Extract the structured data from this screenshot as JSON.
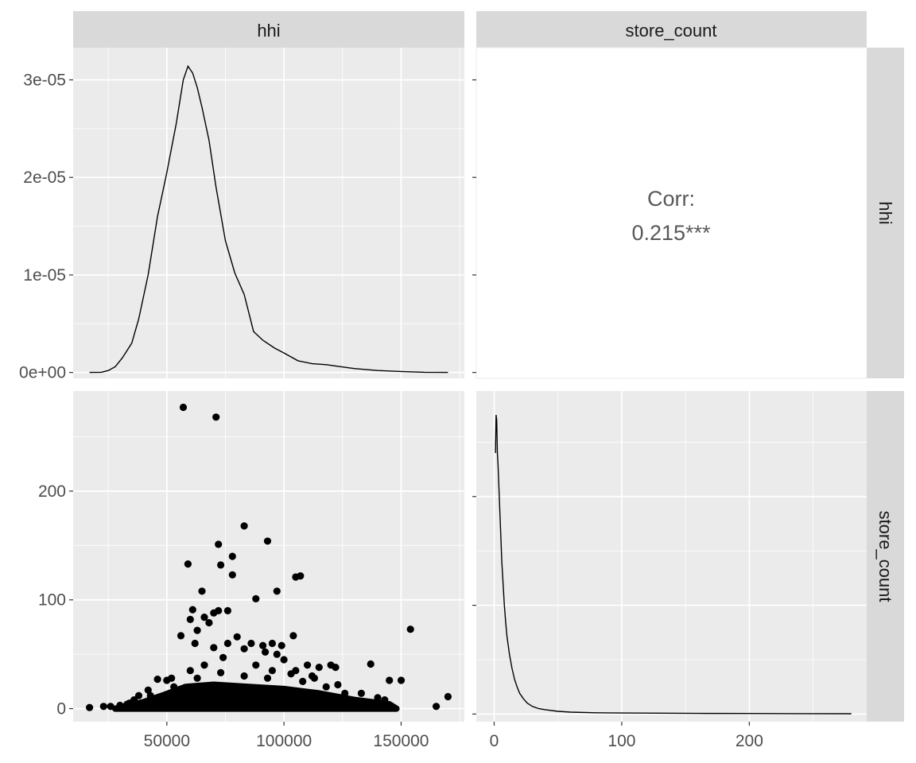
{
  "chart_data": {
    "type": "scatter-matrix",
    "variables": [
      "hhi",
      "store_count"
    ],
    "strip_labels": {
      "columns": [
        "hhi",
        "store_count"
      ],
      "rows": [
        "hhi",
        "store_count"
      ]
    },
    "panels": {
      "hhi_density": {
        "type": "line",
        "xlim": [
          10000,
          177000
        ],
        "ylim": [
          -6e-07,
          3.33e-05
        ],
        "x_ticks": [
          50000,
          100000,
          150000
        ],
        "y_ticks": [
          0,
          1e-05,
          2e-05,
          3e-05
        ],
        "y_tick_labels": [
          "0e+00",
          "1e-05",
          "2e-05",
          "3e-05"
        ],
        "x": [
          17000,
          22000,
          25000,
          28000,
          31000,
          35000,
          38000,
          42000,
          46000,
          50000,
          54000,
          57000,
          59000,
          61000,
          63000,
          65000,
          68000,
          71000,
          75000,
          79000,
          83000,
          87000,
          91000,
          96000,
          100000,
          106000,
          112000,
          118000,
          124000,
          130000,
          140000,
          150000,
          160000,
          170000
        ],
        "y": [
          0,
          2e-08,
          2e-07,
          6e-07,
          1.5e-06,
          3e-06,
          5.5e-06,
          1e-05,
          1.6e-05,
          2.05e-05,
          2.55e-05,
          3e-05,
          3.14e-05,
          3.07e-05,
          2.92e-05,
          2.72e-05,
          2.38e-05,
          1.9e-05,
          1.35e-05,
          1.02e-05,
          8e-06,
          4.2e-06,
          3.3e-06,
          2.5e-06,
          2e-06,
          1.2e-06,
          9e-07,
          8e-07,
          6e-07,
          4e-07,
          2e-07,
          1e-07,
          2e-08,
          0
        ]
      },
      "correlation": {
        "label": "Corr:",
        "value": "0.215***"
      },
      "scatter": {
        "type": "scatter",
        "xlim": [
          10000,
          177000
        ],
        "ylim": [
          -12,
          292
        ],
        "x_ticks": [
          50000,
          100000,
          150000
        ],
        "y_ticks": [
          0,
          100,
          200
        ],
        "points": [
          [
            57000,
            277
          ],
          [
            71000,
            268
          ],
          [
            83000,
            168
          ],
          [
            93000,
            154
          ],
          [
            72000,
            151
          ],
          [
            78000,
            140
          ],
          [
            59000,
            133
          ],
          [
            73000,
            132
          ],
          [
            78000,
            123
          ],
          [
            105000,
            121
          ],
          [
            107000,
            122
          ],
          [
            65000,
            108
          ],
          [
            97000,
            108
          ],
          [
            88000,
            101
          ],
          [
            61000,
            91
          ],
          [
            70000,
            88
          ],
          [
            72000,
            90
          ],
          [
            76000,
            90
          ],
          [
            66000,
            84
          ],
          [
            60000,
            82
          ],
          [
            68000,
            79
          ],
          [
            63000,
            72
          ],
          [
            154000,
            73
          ],
          [
            56000,
            67
          ],
          [
            104000,
            67
          ],
          [
            80000,
            66
          ],
          [
            76000,
            60
          ],
          [
            62000,
            60
          ],
          [
            86000,
            60
          ],
          [
            91000,
            58
          ],
          [
            95000,
            60
          ],
          [
            99000,
            58
          ],
          [
            70000,
            56
          ],
          [
            83000,
            55
          ],
          [
            92000,
            52
          ],
          [
            97000,
            50
          ],
          [
            100000,
            45
          ],
          [
            74000,
            47
          ],
          [
            110000,
            40
          ],
          [
            115000,
            38
          ],
          [
            120000,
            40
          ],
          [
            137000,
            41
          ],
          [
            122000,
            38
          ],
          [
            105000,
            35
          ],
          [
            112000,
            30
          ],
          [
            95000,
            35
          ],
          [
            88000,
            40
          ],
          [
            46000,
            27
          ],
          [
            50000,
            26
          ],
          [
            52000,
            28
          ],
          [
            60000,
            35
          ],
          [
            66000,
            40
          ],
          [
            145000,
            26
          ],
          [
            150000,
            26
          ],
          [
            42000,
            17
          ],
          [
            38000,
            12
          ],
          [
            36000,
            8
          ],
          [
            34000,
            5
          ],
          [
            30000,
            3
          ],
          [
            26000,
            2
          ],
          [
            23000,
            2
          ],
          [
            17000,
            1
          ],
          [
            165000,
            2
          ],
          [
            170000,
            11
          ],
          [
            140000,
            10
          ],
          [
            135000,
            3
          ],
          [
            130000,
            3
          ],
          [
            126000,
            14
          ],
          [
            118000,
            20
          ],
          [
            108000,
            25
          ],
          [
            45000,
            8
          ],
          [
            55000,
            15
          ],
          [
            65000,
            20
          ],
          [
            75000,
            15
          ],
          [
            85000,
            12
          ],
          [
            95000,
            10
          ],
          [
            105000,
            8
          ],
          [
            115000,
            5
          ],
          [
            125000,
            3
          ],
          [
            48000,
            3
          ],
          [
            58000,
            5
          ],
          [
            68000,
            8
          ],
          [
            78000,
            4
          ],
          [
            88000,
            6
          ],
          [
            98000,
            3
          ],
          [
            108000,
            2
          ],
          [
            118000,
            4
          ],
          [
            128000,
            6
          ],
          [
            138000,
            2
          ],
          [
            143000,
            8
          ],
          [
            133000,
            14
          ],
          [
            123000,
            22
          ],
          [
            113000,
            28
          ],
          [
            103000,
            32
          ],
          [
            93000,
            28
          ],
          [
            83000,
            30
          ],
          [
            73000,
            33
          ],
          [
            63000,
            28
          ],
          [
            53000,
            20
          ],
          [
            43000,
            12
          ],
          [
            40000,
            5
          ],
          [
            33000,
            4
          ]
        ],
        "dense_region": [
          [
            28000,
            0
          ],
          [
            148000,
            0
          ],
          [
            145000,
            4
          ],
          [
            130000,
            8
          ],
          [
            115000,
            14
          ],
          [
            100000,
            18
          ],
          [
            85000,
            20
          ],
          [
            70000,
            22
          ],
          [
            58000,
            20
          ],
          [
            48000,
            12
          ],
          [
            40000,
            6
          ],
          [
            32000,
            2
          ]
        ]
      },
      "store_count_density": {
        "type": "line",
        "xlim": [
          -14,
          292
        ],
        "ylim": [
          -7,
          297
        ],
        "x_ticks": [
          0,
          100,
          200
        ],
        "x": [
          1,
          1.5,
          2,
          2.5,
          3,
          4,
          5,
          6,
          7,
          8,
          9,
          10,
          12,
          14,
          16,
          18,
          20,
          23,
          26,
          30,
          35,
          40,
          50,
          60,
          80,
          100,
          130,
          160,
          200,
          240,
          280
        ],
        "y": [
          240,
          275,
          270,
          240,
          230,
          200,
          170,
          140,
          120,
          100,
          85,
          72,
          55,
          42,
          32,
          25,
          19,
          14,
          10,
          7,
          5,
          4,
          2.5,
          1.8,
          1.2,
          1,
          0.8,
          0.6,
          0.5,
          0.4,
          0.3
        ]
      }
    },
    "x_tick_labels": {
      "hhi": [
        "50000",
        "100000",
        "150000"
      ],
      "store_count": [
        "0",
        "100",
        "200"
      ]
    },
    "y_tick_labels_scatter": [
      "0",
      "100",
      "200"
    ],
    "grid": true,
    "colors": {
      "panel_bg": "#ebebeb",
      "strip_bg": "#d9d9d9",
      "grid": "#ffffff",
      "ink": "#000000",
      "tick_text": "#4d4d4d",
      "strip_text": "#1a1a1a",
      "corr_text": "#595959"
    }
  }
}
